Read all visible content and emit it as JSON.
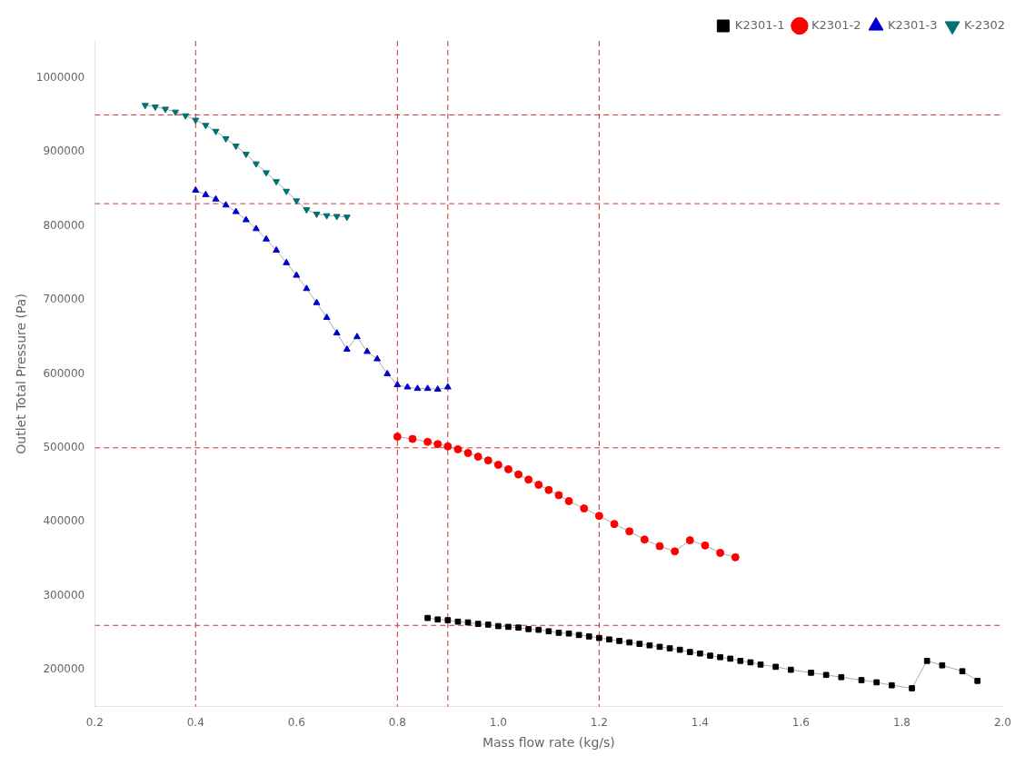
{
  "chart_data": {
    "type": "line",
    "xlabel": "Mass flow rate (kg/s)",
    "ylabel": "Outlet Total Pressure (Pa)",
    "xlim": [
      0.2,
      2.0
    ],
    "ylim": [
      150000,
      1050000
    ],
    "xticks": [
      0.2,
      0.4,
      0.6,
      0.8,
      {
        "value": 1.0,
        "label": "1.0"
      },
      1.2,
      1.4,
      1.6,
      1.8,
      {
        "value": 2.0,
        "label": "2.0"
      }
    ],
    "yticks": [
      200000,
      300000,
      400000,
      500000,
      600000,
      700000,
      800000,
      900000,
      1000000
    ],
    "grid": false,
    "legend": "upper right",
    "reference_lines": {
      "x": [
        0.4,
        0.8,
        0.9,
        1.2
      ],
      "y": [
        260000,
        500000,
        830000,
        950000
      ],
      "color": "#cc3333",
      "line_style": "dashed"
    },
    "series": [
      {
        "name": "K2301-1",
        "color": "#000000",
        "line_color": "#aaaaaa",
        "marker": "square",
        "x": [
          0.86,
          0.88,
          0.9,
          0.92,
          0.94,
          0.96,
          0.98,
          1.0,
          1.02,
          1.04,
          1.06,
          1.08,
          1.1,
          1.12,
          1.14,
          1.16,
          1.18,
          1.2,
          1.22,
          1.24,
          1.26,
          1.28,
          1.3,
          1.32,
          1.34,
          1.36,
          1.38,
          1.4,
          1.42,
          1.44,
          1.46,
          1.48,
          1.5,
          1.52,
          1.55,
          1.58,
          1.62,
          1.65,
          1.68,
          1.72,
          1.75,
          1.78,
          1.82,
          1.85,
          1.88,
          1.92,
          1.95
        ],
        "values": [
          270000,
          268000,
          267000,
          265000,
          264000,
          262000,
          261000,
          259000,
          258000,
          257000,
          255000,
          254000,
          252000,
          250000,
          249000,
          247000,
          245000,
          243000,
          241000,
          239000,
          237000,
          235000,
          233000,
          231000,
          229000,
          227000,
          224000,
          222000,
          219000,
          217000,
          215000,
          212000,
          210000,
          207000,
          204000,
          200000,
          196000,
          193000,
          190000,
          186000,
          183000,
          179000,
          175000,
          212000,
          206000,
          198000,
          185000
        ]
      },
      {
        "name": "K2301-2",
        "color": "#ff0000",
        "line_color": "#aaaaaa",
        "marker": "circle",
        "x": [
          0.8,
          0.83,
          0.86,
          0.88,
          0.9,
          0.92,
          0.94,
          0.96,
          0.98,
          1.0,
          1.02,
          1.04,
          1.06,
          1.08,
          1.1,
          1.12,
          1.14,
          1.17,
          1.2,
          1.23,
          1.26,
          1.29,
          1.32,
          1.35,
          1.38,
          1.41,
          1.44,
          1.47
        ],
        "values": [
          515000,
          512000,
          508000,
          505000,
          502000,
          498000,
          493000,
          488000,
          483000,
          477000,
          471000,
          464000,
          457000,
          450000,
          443000,
          436000,
          428000,
          418000,
          408000,
          397000,
          387000,
          376000,
          367000,
          360000,
          375000,
          368000,
          358000,
          352000
        ]
      },
      {
        "name": "K2301-3",
        "color": "#0000cc",
        "line_color": "#aaaaaa",
        "marker": "triangle_up",
        "x": [
          0.4,
          0.42,
          0.44,
          0.46,
          0.48,
          0.5,
          0.52,
          0.54,
          0.56,
          0.58,
          0.6,
          0.62,
          0.64,
          0.66,
          0.68,
          0.7,
          0.72,
          0.74,
          0.76,
          0.78,
          0.8,
          0.82,
          0.84,
          0.86,
          0.88,
          0.9
        ],
        "values": [
          848000,
          842000,
          836000,
          828000,
          819000,
          808000,
          796000,
          782000,
          767000,
          750000,
          733000,
          715000,
          696000,
          676000,
          655000,
          633000,
          650000,
          630000,
          620000,
          600000,
          585000,
          582000,
          580000,
          580000,
          579000,
          582000
        ]
      },
      {
        "name": "K-2302",
        "color": "#007070",
        "line_color": "#aaaaaa",
        "marker": "triangle_down",
        "x": [
          0.3,
          0.32,
          0.34,
          0.36,
          0.38,
          0.4,
          0.42,
          0.44,
          0.46,
          0.48,
          0.5,
          0.52,
          0.54,
          0.56,
          0.58,
          0.6,
          0.62,
          0.64,
          0.66,
          0.68,
          0.7
        ],
        "values": [
          963000,
          961000,
          958000,
          954000,
          949000,
          943000,
          936000,
          928000,
          918000,
          908000,
          897000,
          884000,
          872000,
          860000,
          847000,
          834000,
          822000,
          816000,
          814000,
          813000,
          812000
        ]
      }
    ]
  }
}
